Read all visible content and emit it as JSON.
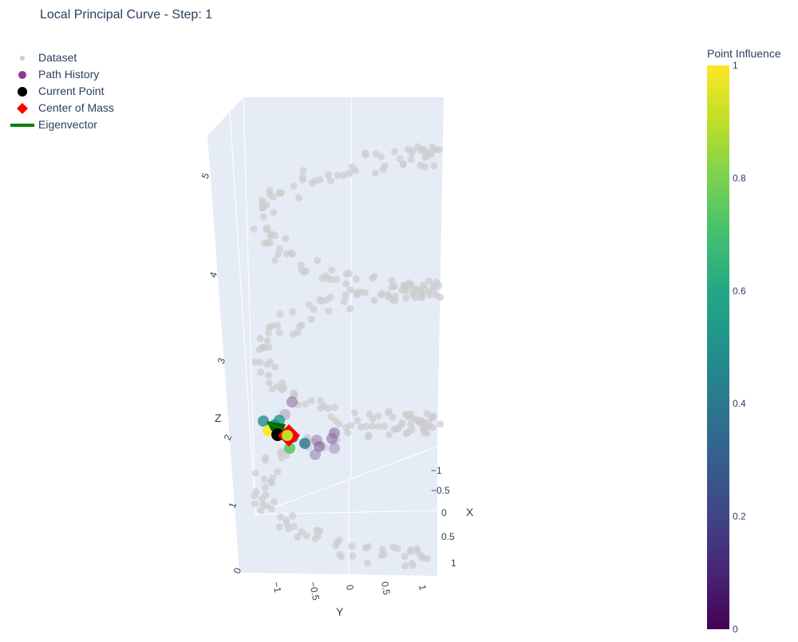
{
  "chart_data": {
    "type": "scatter",
    "title": "Local Principal Curve - Step: 1",
    "axes": {
      "x": {
        "label": "X",
        "ticks": [
          "−1",
          "−0.5",
          "0",
          "0.5",
          "1"
        ]
      },
      "y": {
        "label": "Y",
        "ticks": [
          "−1",
          "−0.5",
          "0",
          "0.5",
          "1"
        ]
      },
      "z": {
        "label": "Z",
        "ticks": [
          "0",
          "1",
          "2",
          "3",
          "4",
          "5"
        ]
      }
    },
    "legend": {
      "placement": "top-left",
      "entries": [
        "Dataset",
        "Path History",
        "Current Point",
        "Center of Mass",
        "Eigenvector"
      ]
    },
    "colorbar": {
      "title": "Point Influence",
      "ticks": [
        "0",
        "0.2",
        "0.4",
        "0.6",
        "0.8",
        "1"
      ],
      "range": [
        0,
        1
      ],
      "colorscale": "viridis"
    },
    "colors": {
      "dataset": "#cccccc",
      "path_history": "#8e3896",
      "current_point": "#000000",
      "center_of_mass": "#ff0000",
      "eigenvector": "#008000",
      "scene_background": "#e5ecf6"
    }
  }
}
